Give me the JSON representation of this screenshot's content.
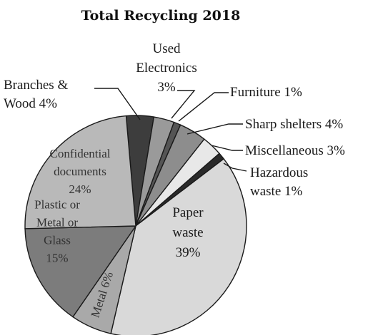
{
  "chart_data": {
    "type": "pie",
    "title": "Total Recycling 2018",
    "slices": [
      {
        "id": "paper",
        "label_lines": [
          "Paper",
          "waste",
          "39%"
        ],
        "value": 39,
        "color": "#d9d9d9"
      },
      {
        "id": "metal",
        "label_lines": [
          "Metal 6%"
        ],
        "value": 6,
        "color": "#a9a9a9"
      },
      {
        "id": "plastic",
        "label_lines": [
          "Plastic or",
          "Metal or",
          "Glass",
          "15%"
        ],
        "value": 15,
        "color": "#7c7c7c"
      },
      {
        "id": "confidential",
        "label_lines": [
          "Confidential",
          "documents",
          "24%"
        ],
        "value": 24,
        "color": "#b9b9b9"
      },
      {
        "id": "branches",
        "label_lines": [
          "Branches &",
          "Wood 4%"
        ],
        "value": 4,
        "color": "#3d3d3d"
      },
      {
        "id": "electronics",
        "label_lines": [
          "Used",
          "Electronics",
          "3%"
        ],
        "value": 3,
        "color": "#9a9a9a"
      },
      {
        "id": "furniture",
        "label_lines": [
          "Furniture 1%"
        ],
        "value": 1,
        "color": "#555555"
      },
      {
        "id": "sharp",
        "label_lines": [
          "Sharp shelters 4%"
        ],
        "value": 4,
        "color": "#8d8d8d"
      },
      {
        "id": "misc",
        "label_lines": [
          "Miscellaneous 3%"
        ],
        "value": 3,
        "color": "#e8e8e8"
      },
      {
        "id": "hazardous",
        "label_lines": [
          "Hazardous",
          "waste 1%"
        ],
        "value": 1,
        "color": "#2a2a2a"
      }
    ]
  }
}
